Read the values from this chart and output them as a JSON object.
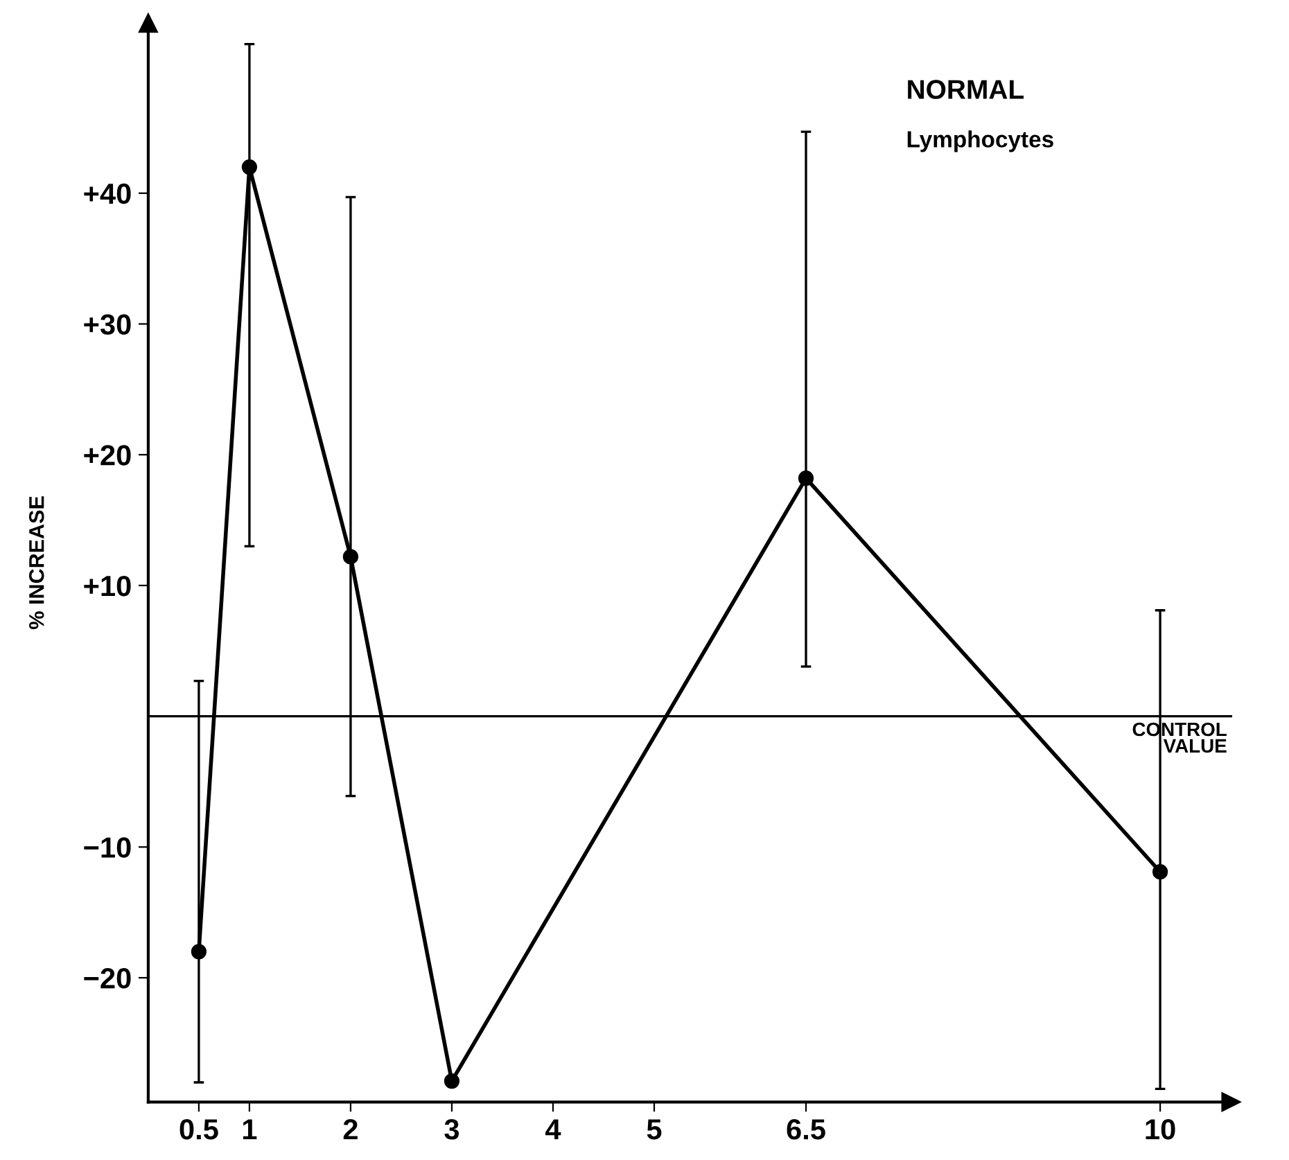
{
  "chart_data": {
    "type": "line",
    "ylabel": "% INCREASE",
    "annotations": [
      "NORMAL",
      "Lymphocytes"
    ],
    "x": [
      0.5,
      1,
      2,
      3,
      6.5,
      10
    ],
    "series": [
      {
        "color": "#000000",
        "values": [
          -18,
          42,
          12.2,
          -27.9,
          18.2,
          -11.9
        ],
        "errors": [
          [
            -28,
            2.7
          ],
          [
            13,
            51.4
          ],
          [
            -6.1,
            39.7
          ],
          null,
          [
            3.8,
            44.7
          ],
          [
            -28.5,
            8.1
          ]
        ]
      }
    ],
    "marker": "circle",
    "line_style": "solid",
    "grid": false,
    "legend": false,
    "xlim": [
      0,
      10.7
    ],
    "xticks": [
      0.5,
      1,
      2,
      3,
      4,
      5,
      6.5,
      10
    ],
    "ylim": [
      -29.5,
      53
    ],
    "yticks": [
      {
        "value": -20,
        "label": "−20"
      },
      {
        "value": -10,
        "label": "−10"
      },
      {
        "value": 10,
        "label": "+10"
      },
      {
        "value": 20,
        "label": "+20"
      },
      {
        "value": 30,
        "label": "+30"
      },
      {
        "value": 40,
        "label": "+40"
      }
    ],
    "ref_lines": [
      {
        "axis": "y",
        "value": 0,
        "label": "CONTROL\nVALUE",
        "color": "#000000"
      }
    ]
  }
}
